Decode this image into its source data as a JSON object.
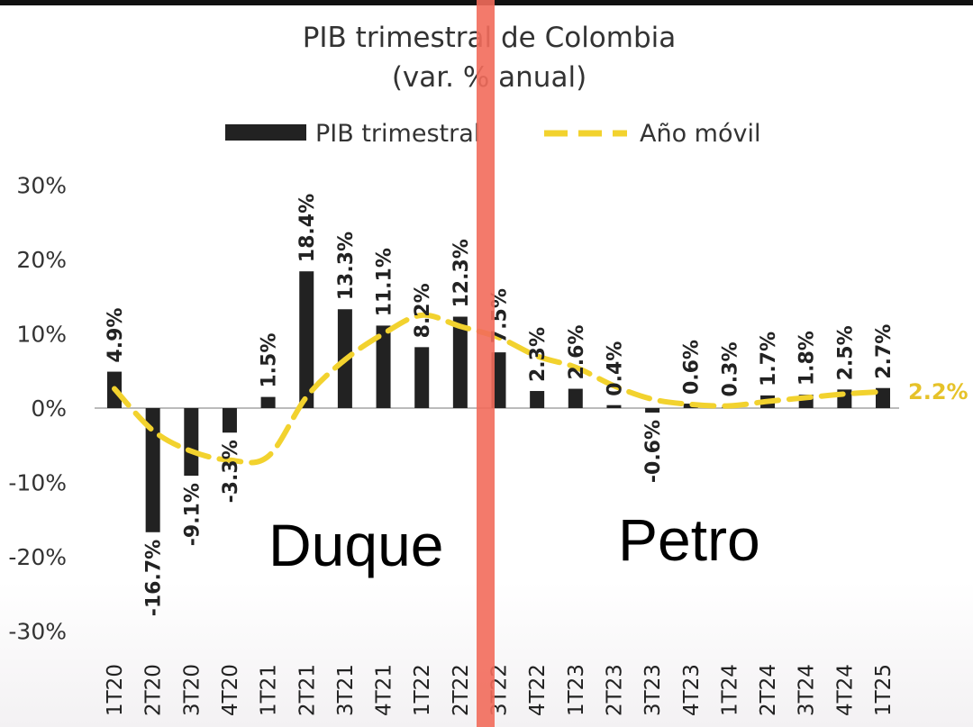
{
  "chart_data": {
    "type": "bar",
    "title": "PIB trimestral de Colombia",
    "subtitle": "(var. % anual)",
    "categories": [
      "1T20",
      "2T20",
      "3T20",
      "4T20",
      "1T21",
      "2T21",
      "3T21",
      "4T21",
      "1T22",
      "2T22",
      "3T22",
      "4T22",
      "1T23",
      "2T23",
      "3T23",
      "4T23",
      "1T24",
      "2T24",
      "3T24",
      "4T24",
      "1T25"
    ],
    "series": [
      {
        "name": "PIB trimestral",
        "kind": "bar",
        "color": "#222222",
        "values": [
          4.9,
          -16.7,
          -9.1,
          -3.3,
          1.5,
          18.4,
          13.3,
          11.1,
          8.2,
          12.3,
          7.5,
          2.3,
          2.6,
          0.4,
          -0.6,
          0.6,
          0.3,
          1.7,
          1.8,
          2.5,
          2.7
        ],
        "labels": [
          "4.9%",
          "-16.7%",
          "-9.1%",
          "-3.3%",
          "1.5%",
          "18.4%",
          "13.3%",
          "11.1%",
          "8.2%",
          "12.3%",
          "7.5%",
          "2.3%",
          "2.6%",
          "0.4%",
          "-0.6%",
          "0.6%",
          "0.3%",
          "1.7%",
          "1.8%",
          "2.5%",
          "2.7%"
        ]
      },
      {
        "name": "Año móvil",
        "kind": "line",
        "style": "dashed",
        "color": "#f2d22e",
        "values": [
          2.6,
          -3.0,
          -5.8,
          -7.0,
          -6.5,
          1.5,
          6.5,
          10.0,
          12.5,
          11.0,
          9.5,
          7.0,
          5.5,
          3.0,
          1.2,
          0.5,
          0.3,
          0.9,
          1.4,
          1.9,
          2.2
        ]
      }
    ],
    "end_label": "2.2%",
    "yticks": [
      "30%",
      "20%",
      "10%",
      "0%",
      "-10%",
      "-20%",
      "-30%"
    ],
    "ylim": [
      -30,
      30
    ],
    "legend_position": "top",
    "divider": {
      "after_category": "3T22",
      "color": "#f26b5b"
    },
    "annotations": [
      {
        "text": "Duque",
        "region": "left"
      },
      {
        "text": "Petro",
        "region": "right"
      }
    ]
  }
}
